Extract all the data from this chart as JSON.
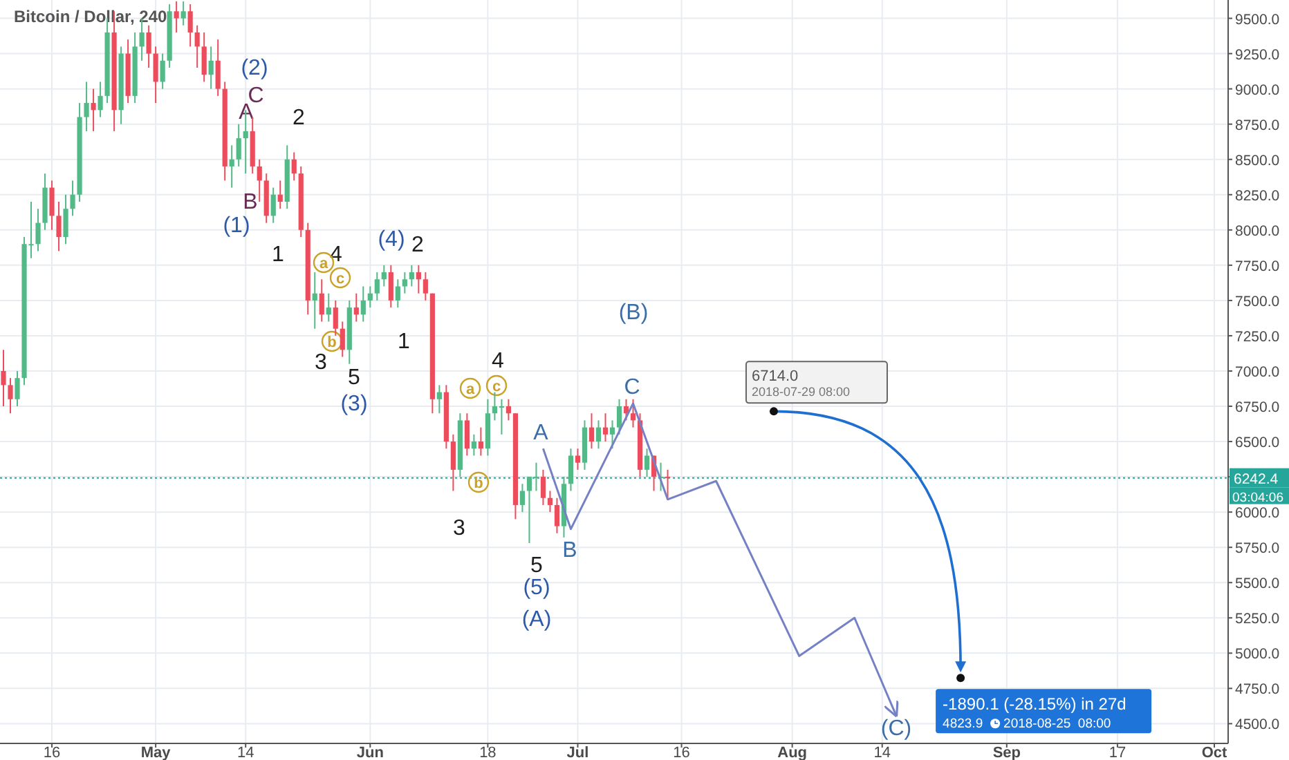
{
  "chart_data": {
    "type": "candlestick",
    "title": "Bitcoin / Dollar, 240",
    "xlim": [
      "2018-04-08T12:00",
      "2018-10-03T00:00"
    ],
    "xticks": [
      {
        "value": "2018-04-16",
        "label": "16"
      },
      {
        "value": "2018-05-01",
        "label": "May"
      },
      {
        "value": "2018-05-14",
        "label": "14"
      },
      {
        "value": "2018-06-01",
        "label": "Jun"
      },
      {
        "value": "2018-06-18",
        "label": "18"
      },
      {
        "value": "2018-07-01",
        "label": "Jul"
      },
      {
        "value": "2018-07-16",
        "label": "16"
      },
      {
        "value": "2018-08-01",
        "label": "Aug"
      },
      {
        "value": "2018-08-14",
        "label": "14"
      },
      {
        "value": "2018-09-01",
        "label": "Sep"
      },
      {
        "value": "2018-09-17",
        "label": "17"
      },
      {
        "value": "2018-10-01",
        "label": "Oct"
      }
    ],
    "ylim": [
      4360,
      9630
    ],
    "yticks": [
      {
        "value": 4500,
        "label": "4500.0"
      },
      {
        "value": 4750,
        "label": "4750.0"
      },
      {
        "value": 5000,
        "label": "5000.0"
      },
      {
        "value": 5250,
        "label": "5250.0"
      },
      {
        "value": 5500,
        "label": "5500.0"
      },
      {
        "value": 5750,
        "label": "5750.0"
      },
      {
        "value": 6000,
        "label": "6000.0"
      },
      {
        "value": 6250,
        "label": null
      },
      {
        "value": 6500,
        "label": "6500.0"
      },
      {
        "value": 6750,
        "label": "6750.0"
      },
      {
        "value": 7000,
        "label": "7000.0"
      },
      {
        "value": 7250,
        "label": "7250.0"
      },
      {
        "value": 7500,
        "label": "7500.0"
      },
      {
        "value": 7750,
        "label": "7750.0"
      },
      {
        "value": 8000,
        "label": "8000.0"
      },
      {
        "value": 8250,
        "label": "8250.0"
      },
      {
        "value": 8500,
        "label": "8500.0"
      },
      {
        "value": 8750,
        "label": "8750.0"
      },
      {
        "value": 9000,
        "label": "9000.0"
      },
      {
        "value": 9250,
        "label": "9250.0"
      },
      {
        "value": 9500,
        "label": "9500.0"
      }
    ],
    "grid": true,
    "marker": "none",
    "series": [
      {
        "x": [
          "2018-04-09",
          "2018-04-10",
          "2018-04-11",
          "2018-04-12",
          "2018-04-13",
          "2018-04-14",
          "2018-04-15",
          "2018-04-16",
          "2018-04-17",
          "2018-04-18",
          "2018-04-19",
          "2018-04-20",
          "2018-04-21",
          "2018-04-22",
          "2018-04-23",
          "2018-04-24",
          "2018-04-25",
          "2018-04-26",
          "2018-04-27",
          "2018-04-28",
          "2018-04-29",
          "2018-04-30",
          "2018-05-01",
          "2018-05-02",
          "2018-05-03",
          "2018-05-04",
          "2018-05-05",
          "2018-05-06",
          "2018-05-07",
          "2018-05-08",
          "2018-05-09",
          "2018-05-10",
          "2018-05-11",
          "2018-05-12",
          "2018-05-13",
          "2018-05-14",
          "2018-05-15",
          "2018-05-16",
          "2018-05-17",
          "2018-05-18",
          "2018-05-19",
          "2018-05-20",
          "2018-05-21",
          "2018-05-22",
          "2018-05-23",
          "2018-05-24",
          "2018-05-25",
          "2018-05-26",
          "2018-05-27",
          "2018-05-28",
          "2018-05-29",
          "2018-05-30",
          "2018-05-31",
          "2018-06-01",
          "2018-06-02",
          "2018-06-03",
          "2018-06-04",
          "2018-06-05",
          "2018-06-06",
          "2018-06-07",
          "2018-06-08",
          "2018-06-09",
          "2018-06-10",
          "2018-06-11",
          "2018-06-12",
          "2018-06-13",
          "2018-06-14",
          "2018-06-15",
          "2018-06-16",
          "2018-06-17",
          "2018-06-18",
          "2018-06-19",
          "2018-06-20",
          "2018-06-21",
          "2018-06-22",
          "2018-06-23",
          "2018-06-24",
          "2018-06-25",
          "2018-06-26",
          "2018-06-27",
          "2018-06-28",
          "2018-06-29",
          "2018-06-30",
          "2018-07-01",
          "2018-07-02",
          "2018-07-03",
          "2018-07-04",
          "2018-07-05",
          "2018-07-06",
          "2018-07-07",
          "2018-07-08",
          "2018-07-09",
          "2018-07-10",
          "2018-07-11",
          "2018-07-12",
          "2018-07-13",
          "2018-07-14"
        ],
        "ohlc": [
          [
            7000,
            7150,
            6750,
            6900
          ],
          [
            6900,
            6950,
            6700,
            6800
          ],
          [
            6800,
            7000,
            6750,
            6950
          ],
          [
            6950,
            7950,
            6900,
            7900
          ],
          [
            7900,
            8200,
            7800,
            7900
          ],
          [
            7900,
            8150,
            7850,
            8050
          ],
          [
            8050,
            8400,
            8000,
            8300
          ],
          [
            8300,
            8350,
            8000,
            8100
          ],
          [
            8100,
            8200,
            7850,
            7950
          ],
          [
            7950,
            8250,
            7900,
            8150
          ],
          [
            8150,
            8350,
            8100,
            8250
          ],
          [
            8250,
            8900,
            8200,
            8800
          ],
          [
            8800,
            9050,
            8700,
            8900
          ],
          [
            8900,
            9000,
            8700,
            8850
          ],
          [
            8850,
            9050,
            8800,
            8950
          ],
          [
            8950,
            9500,
            8900,
            9400
          ],
          [
            9400,
            9550,
            8700,
            8850
          ],
          [
            8850,
            9300,
            8750,
            9250
          ],
          [
            9250,
            9350,
            8900,
            8950
          ],
          [
            8950,
            9400,
            8900,
            9300
          ],
          [
            9300,
            9500,
            9200,
            9400
          ],
          [
            9400,
            9450,
            9150,
            9250
          ],
          [
            9250,
            9300,
            8900,
            9050
          ],
          [
            9050,
            9250,
            9000,
            9200
          ],
          [
            9200,
            9600,
            9150,
            9550
          ],
          [
            9550,
            9620,
            9400,
            9500
          ],
          [
            9500,
            9620,
            9450,
            9550
          ],
          [
            9550,
            9600,
            9300,
            9400
          ],
          [
            9400,
            9450,
            9150,
            9300
          ],
          [
            9300,
            9400,
            9050,
            9100
          ],
          [
            9100,
            9300,
            9000,
            9200
          ],
          [
            9200,
            9350,
            8950,
            9000
          ],
          [
            9000,
            9050,
            8350,
            8450
          ],
          [
            8450,
            8600,
            8300,
            8500
          ],
          [
            8500,
            8750,
            8450,
            8650
          ],
          [
            8650,
            8850,
            8400,
            8700
          ],
          [
            8700,
            8800,
            8400,
            8450
          ],
          [
            8450,
            8500,
            8200,
            8350
          ],
          [
            8350,
            8400,
            8050,
            8100
          ],
          [
            8100,
            8300,
            8050,
            8250
          ],
          [
            8250,
            8350,
            8150,
            8200
          ],
          [
            8200,
            8600,
            8150,
            8500
          ],
          [
            8500,
            8550,
            8350,
            8400
          ],
          [
            8400,
            8450,
            7950,
            8000
          ],
          [
            8000,
            8050,
            7400,
            7500
          ],
          [
            7500,
            7700,
            7300,
            7550
          ],
          [
            7550,
            7650,
            7350,
            7400
          ],
          [
            7400,
            7550,
            7350,
            7450
          ],
          [
            7450,
            7500,
            7250,
            7300
          ],
          [
            7300,
            7350,
            7100,
            7150
          ],
          [
            7150,
            7500,
            7050,
            7450
          ],
          [
            7450,
            7550,
            7350,
            7400
          ],
          [
            7400,
            7600,
            7350,
            7500
          ],
          [
            7500,
            7600,
            7450,
            7550
          ],
          [
            7550,
            7700,
            7500,
            7650
          ],
          [
            7650,
            7750,
            7600,
            7700
          ],
          [
            7700,
            7750,
            7450,
            7500
          ],
          [
            7500,
            7650,
            7450,
            7600
          ],
          [
            7600,
            7700,
            7550,
            7650
          ],
          [
            7650,
            7750,
            7600,
            7700
          ],
          [
            7700,
            7750,
            7550,
            7650
          ],
          [
            7650,
            7700,
            7500,
            7550
          ],
          [
            7550,
            7550,
            6700,
            6800
          ],
          [
            6800,
            6900,
            6700,
            6850
          ],
          [
            6850,
            6900,
            6450,
            6500
          ],
          [
            6500,
            6550,
            6150,
            6300
          ],
          [
            6300,
            6700,
            6250,
            6650
          ],
          [
            6650,
            6700,
            6400,
            6450
          ],
          [
            6450,
            6550,
            6400,
            6500
          ],
          [
            6500,
            6600,
            6400,
            6450
          ],
          [
            6450,
            6800,
            6400,
            6700
          ],
          [
            6700,
            6850,
            6650,
            6750
          ],
          [
            6750,
            6800,
            6550,
            6750
          ],
          [
            6750,
            6800,
            6650,
            6700
          ],
          [
            6700,
            6700,
            5950,
            6050
          ],
          [
            6050,
            6200,
            6000,
            6150
          ],
          [
            6150,
            6250,
            5780,
            6250
          ],
          [
            6250,
            6350,
            6150,
            6250
          ],
          [
            6250,
            6300,
            6050,
            6100
          ],
          [
            6100,
            6150,
            6000,
            6050
          ],
          [
            6050,
            6100,
            5850,
            5900
          ],
          [
            5900,
            6250,
            5820,
            6200
          ],
          [
            6200,
            6450,
            6150,
            6400
          ],
          [
            6400,
            6450,
            6300,
            6350
          ],
          [
            6350,
            6650,
            6300,
            6600
          ],
          [
            6600,
            6700,
            6450,
            6500
          ],
          [
            6500,
            6650,
            6450,
            6600
          ],
          [
            6600,
            6700,
            6500,
            6550
          ],
          [
            6550,
            6650,
            6450,
            6600
          ],
          [
            6600,
            6800,
            6550,
            6750
          ],
          [
            6750,
            6800,
            6650,
            6700
          ],
          [
            6700,
            6800,
            6600,
            6650
          ],
          [
            6650,
            6700,
            6250,
            6300
          ],
          [
            6300,
            6450,
            6250,
            6400
          ],
          [
            6400,
            6400,
            6150,
            6250
          ],
          [
            6250,
            6350,
            6150,
            6250
          ],
          [
            6250,
            6300,
            6100,
            6242.4
          ]
        ]
      },
      {
        "type": "line",
        "color": "#7581c4",
        "x": [
          "2018-06-26",
          "2018-06-30",
          "2018-07-09",
          "2018-07-14",
          "2018-07-21",
          "2018-08-02",
          "2018-08-10",
          "2018-08-16"
        ],
        "values": [
          6450,
          5880,
          6770,
          6090,
          6220,
          4980,
          5250,
          4560
        ]
      }
    ],
    "ref_lines": [
      {
        "axis": "y",
        "value": 6242.4,
        "label": "6242.4",
        "color": "#26a69a",
        "line_style": "dotted"
      }
    ],
    "annotations": [
      "(2)",
      "C",
      "A",
      "2",
      "B",
      "(1)",
      "1",
      "4",
      "(4)",
      "2",
      "3",
      "5",
      "(3)",
      "1",
      "4",
      "3",
      "5",
      "(5)",
      "(A)",
      "A",
      "B",
      "C",
      "(B)",
      "(C)",
      "a",
      "c",
      "b",
      "a",
      "c",
      "b",
      {
        "text": "6714.0",
        "x": "2018-07-29T08:00",
        "y": 6714
      },
      "2018-07-29 08:00",
      {
        "text": "-1890.1 (-28.15%) in 27d",
        "x": "2018-08-25T08:00",
        "y": 4823.9
      },
      "4823.9",
      "2018-08-25  08:00",
      "03:04:06"
    ]
  }
}
